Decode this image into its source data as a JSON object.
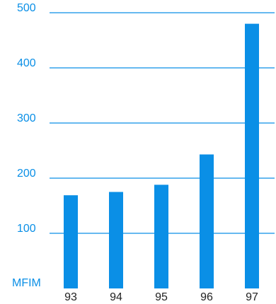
{
  "chart_data": {
    "type": "bar",
    "categories": [
      "93",
      "94",
      "95",
      "96",
      "97"
    ],
    "values": [
      169,
      175,
      188,
      243,
      480
    ],
    "ylabel": "MFIM",
    "ylim": [
      0,
      500
    ],
    "yticks": [
      "100",
      "200",
      "300",
      "400",
      "500"
    ],
    "grid": true,
    "colors": {
      "bar": "#0a8fe6",
      "grid": "#0a8fe6",
      "ytick_text": "#0a8fe6",
      "xtick_text": "#222222"
    }
  }
}
